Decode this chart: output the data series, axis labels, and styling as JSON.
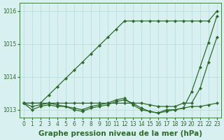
{
  "title": "Graphe pression niveau de la mer (hPa)",
  "x": [
    0,
    1,
    2,
    3,
    4,
    5,
    6,
    7,
    8,
    9,
    10,
    11,
    12,
    13,
    14,
    15,
    16,
    17,
    18,
    19,
    20,
    21,
    22,
    23
  ],
  "series": [
    [
      1013.2,
      1013.2,
      1013.2,
      1013.45,
      1013.7,
      1013.95,
      1014.2,
      1014.45,
      1014.7,
      1014.95,
      1015.2,
      1015.45,
      1015.7,
      1015.7,
      1015.7,
      1015.7,
      1015.7,
      1015.7,
      1015.7,
      1015.7,
      1015.7,
      1015.7,
      1015.7,
      1016.0
    ],
    [
      1013.2,
      1013.2,
      1013.2,
      1013.2,
      1013.2,
      1013.2,
      1013.2,
      1013.2,
      1013.2,
      1013.2,
      1013.2,
      1013.2,
      1013.2,
      1013.2,
      1013.2,
      1013.15,
      1013.1,
      1013.1,
      1013.1,
      1013.2,
      1013.2,
      1013.65,
      1014.45,
      1015.2
    ],
    [
      1013.2,
      1013.0,
      1013.1,
      1013.15,
      1013.1,
      1013.1,
      1013.0,
      1012.95,
      1013.05,
      1013.1,
      1013.15,
      1013.25,
      1013.3,
      1013.2,
      1013.05,
      1012.95,
      1012.9,
      1012.95,
      1013.0,
      1013.05,
      1013.1,
      1013.1,
      1013.15,
      1013.2
    ],
    [
      1013.2,
      1013.1,
      1013.15,
      1013.2,
      1013.15,
      1013.1,
      1013.05,
      1013.0,
      1013.1,
      1013.15,
      1013.2,
      1013.3,
      1013.35,
      1013.15,
      1013.0,
      1012.95,
      1012.9,
      1013.0,
      1013.0,
      1013.05,
      1013.55,
      1014.3,
      1015.05,
      1015.85
    ]
  ],
  "line_color": "#2d6a2d",
  "marker_color": "#2d6a2d",
  "bg_color": "#d9f0f0",
  "grid_color": "#b8dada",
  "axis_label_color": "#2d6a2d",
  "ylim": [
    1012.75,
    1016.25
  ],
  "yticks": [
    1013,
    1014,
    1015,
    1016
  ],
  "xlim": [
    -0.5,
    23.5
  ],
  "xticks": [
    0,
    1,
    2,
    3,
    4,
    5,
    6,
    7,
    8,
    9,
    10,
    11,
    12,
    13,
    14,
    15,
    16,
    17,
    18,
    19,
    20,
    21,
    22,
    23
  ],
  "title_fontsize": 7.5,
  "tick_fontsize": 5.5,
  "marker_size": 2.2,
  "line_width": 0.9
}
